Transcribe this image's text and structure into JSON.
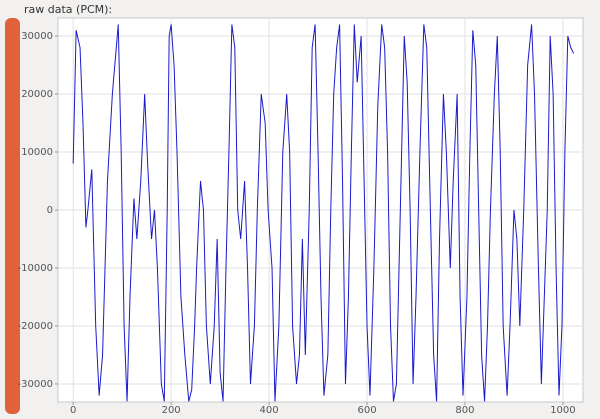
{
  "chart_data": {
    "type": "line",
    "title": "raw data (PCM):",
    "color": "#1a1acc",
    "grid": true,
    "x": [
      0,
      6,
      14,
      20,
      26,
      30,
      38,
      46,
      53,
      60,
      70,
      80,
      92,
      98,
      104,
      110,
      116,
      124,
      130,
      138,
      146,
      152,
      160,
      166,
      172,
      180,
      186,
      192,
      196,
      200,
      206,
      212,
      220,
      228,
      236,
      242,
      248,
      252,
      260,
      266,
      272,
      280,
      288,
      294,
      300,
      306,
      312,
      318,
      324,
      330,
      336,
      342,
      350,
      356,
      362,
      370,
      376,
      384,
      392,
      398,
      406,
      412,
      420,
      428,
      436,
      442,
      448,
      456,
      462,
      468,
      474,
      482,
      488,
      494,
      500,
      506,
      512,
      520,
      526,
      532,
      538,
      544,
      550,
      556,
      562,
      568,
      574,
      580,
      588,
      594,
      600,
      606,
      614,
      622,
      630,
      636,
      642,
      648,
      654,
      660,
      668,
      676,
      682,
      688,
      694,
      700,
      708,
      716,
      722,
      728,
      736,
      742,
      748,
      756,
      762,
      770,
      776,
      784,
      790,
      796,
      804,
      810,
      816,
      822,
      828,
      834,
      840,
      846,
      852,
      860,
      866,
      872,
      878,
      886,
      892,
      900,
      906,
      912,
      920,
      928,
      936,
      942,
      950,
      956,
      962,
      968,
      974,
      980,
      986,
      992,
      998,
      1004,
      1010,
      1016,
      1022
    ],
    "values": [
      8000,
      31000,
      28000,
      15000,
      -3000,
      0,
      7000,
      -20000,
      -32000,
      -25000,
      5000,
      20000,
      32000,
      10000,
      -20000,
      -33000,
      -15000,
      2000,
      -5000,
      5000,
      20000,
      8000,
      -5000,
      0,
      -10000,
      -30000,
      -33000,
      0,
      30000,
      32000,
      25000,
      10000,
      -15000,
      -25000,
      -33000,
      -31000,
      -20000,
      -10000,
      5000,
      0,
      -20000,
      -30000,
      -20000,
      -5000,
      -28000,
      -33000,
      -10000,
      10000,
      32000,
      28000,
      0,
      -5000,
      5000,
      -10000,
      -30000,
      -20000,
      0,
      20000,
      15000,
      0,
      -10000,
      -33000,
      -20000,
      10000,
      20000,
      10000,
      -20000,
      -30000,
      -25000,
      -5000,
      -25000,
      0,
      28000,
      32000,
      10000,
      -15000,
      -32000,
      -25000,
      0,
      20000,
      28000,
      32000,
      5000,
      -30000,
      -15000,
      10000,
      32000,
      22000,
      30000,
      5000,
      -20000,
      -32000,
      -10000,
      18000,
      32000,
      28000,
      10000,
      -20000,
      -33000,
      -30000,
      0,
      30000,
      22000,
      0,
      -30000,
      -15000,
      10000,
      32000,
      28000,
      5000,
      -25000,
      -33000,
      -5000,
      20000,
      10000,
      -10000,
      5000,
      20000,
      -15000,
      -32000,
      -15000,
      10000,
      31000,
      25000,
      0,
      -25000,
      -33000,
      -20000,
      0,
      20000,
      30000,
      10000,
      -20000,
      -32000,
      -20000,
      0,
      -5000,
      -20000,
      0,
      25000,
      32000,
      20000,
      -10000,
      -30000,
      -15000,
      0,
      30000,
      20000,
      -10000,
      -32000,
      -20000,
      10000,
      30000,
      28000,
      27000
    ],
    "xlim": [
      -31,
      1041
    ],
    "ylim": [
      -32768,
      32767
    ],
    "xticks": [
      0,
      200,
      400,
      600,
      800,
      1000
    ],
    "yticks": [
      -30000,
      -20000,
      -10000,
      0,
      10000,
      20000,
      30000
    ]
  }
}
